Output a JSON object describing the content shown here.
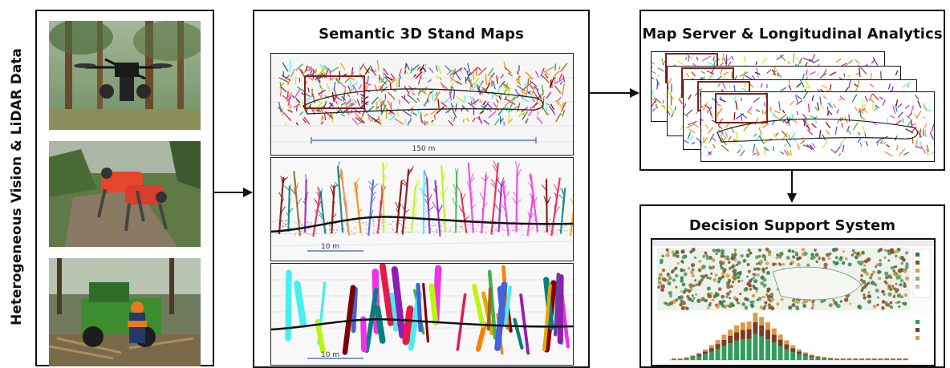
{
  "left_label": "Heterogeneous Vision & LiDAR Data",
  "middle": {
    "title": "Semantic 3D Stand Maps",
    "scale_top": "150 m",
    "scale_mid": "10 m",
    "scale_bottom": "10 m"
  },
  "map_server": {
    "title": "Map Server & Longitudinal Analytics"
  },
  "dss": {
    "title": "Decision Support System"
  }
}
